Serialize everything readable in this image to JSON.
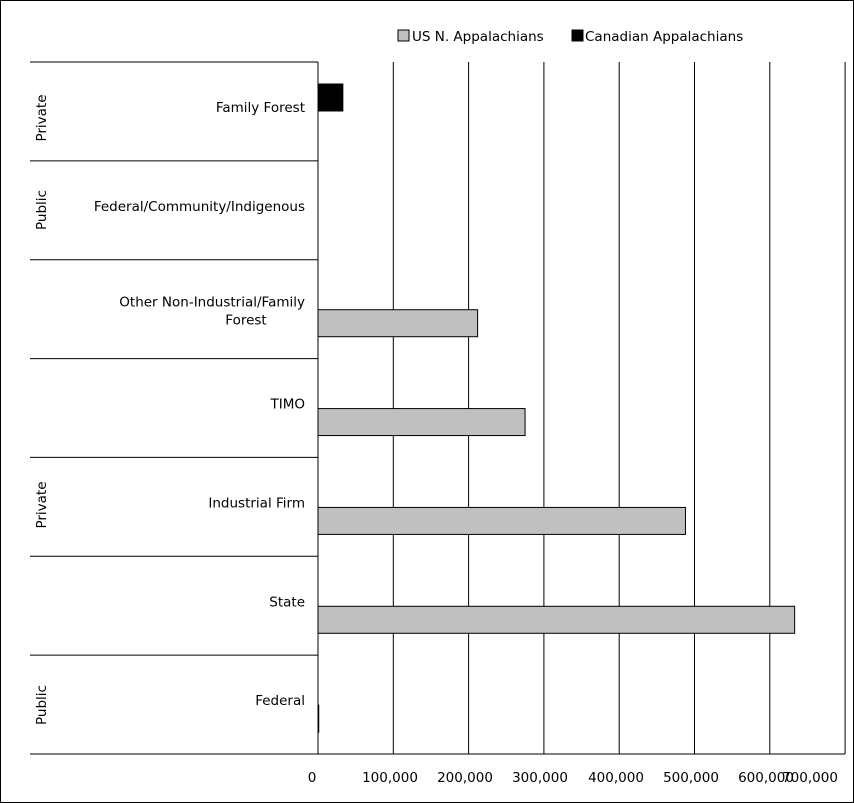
{
  "chart_data": {
    "type": "bar",
    "orientation": "horizontal",
    "categories": [
      "Family Forest",
      "Federal/Community/Indigenous",
      "Other Non-Industrial/Family Forest",
      "TIMO",
      "Industrial Firm",
      "State",
      "Federal"
    ],
    "category_label_lines": [
      [
        "Family Forest"
      ],
      [
        "Federal/Community/Indigenous"
      ],
      [
        "Other Non-Industrial/Family",
        "Forest"
      ],
      [
        "TIMO"
      ],
      [
        "Industrial Firm"
      ],
      [
        "State"
      ],
      [
        "Federal"
      ]
    ],
    "groups": [
      {
        "label": "Private",
        "categories": [
          "Family Forest"
        ]
      },
      {
        "label": "Public",
        "categories": [
          "Federal/Community/Indigenous"
        ]
      },
      {
        "label": "Private",
        "categories": [
          "Other Non-Industrial/Family Forest",
          "TIMO",
          "Industrial Firm"
        ]
      },
      {
        "label": "Public",
        "categories": [
          "State",
          "Federal"
        ]
      }
    ],
    "series": [
      {
        "name": "US N. Appalachians",
        "color": "#c0c0c0",
        "values": [
          0,
          0,
          212000,
          275000,
          488000,
          633000,
          1000
        ]
      },
      {
        "name": "Canadian Appalachians",
        "color": "#000000",
        "values": [
          33000,
          0,
          0,
          0,
          0,
          0,
          0
        ]
      }
    ],
    "x_ticks": [
      "0",
      "100,000",
      "200,000",
      "300,000",
      "400,000",
      "500,000",
      "600,000",
      "700,000"
    ],
    "xlim": [
      0,
      700000
    ],
    "grid": true,
    "legend_position": "top-right"
  }
}
